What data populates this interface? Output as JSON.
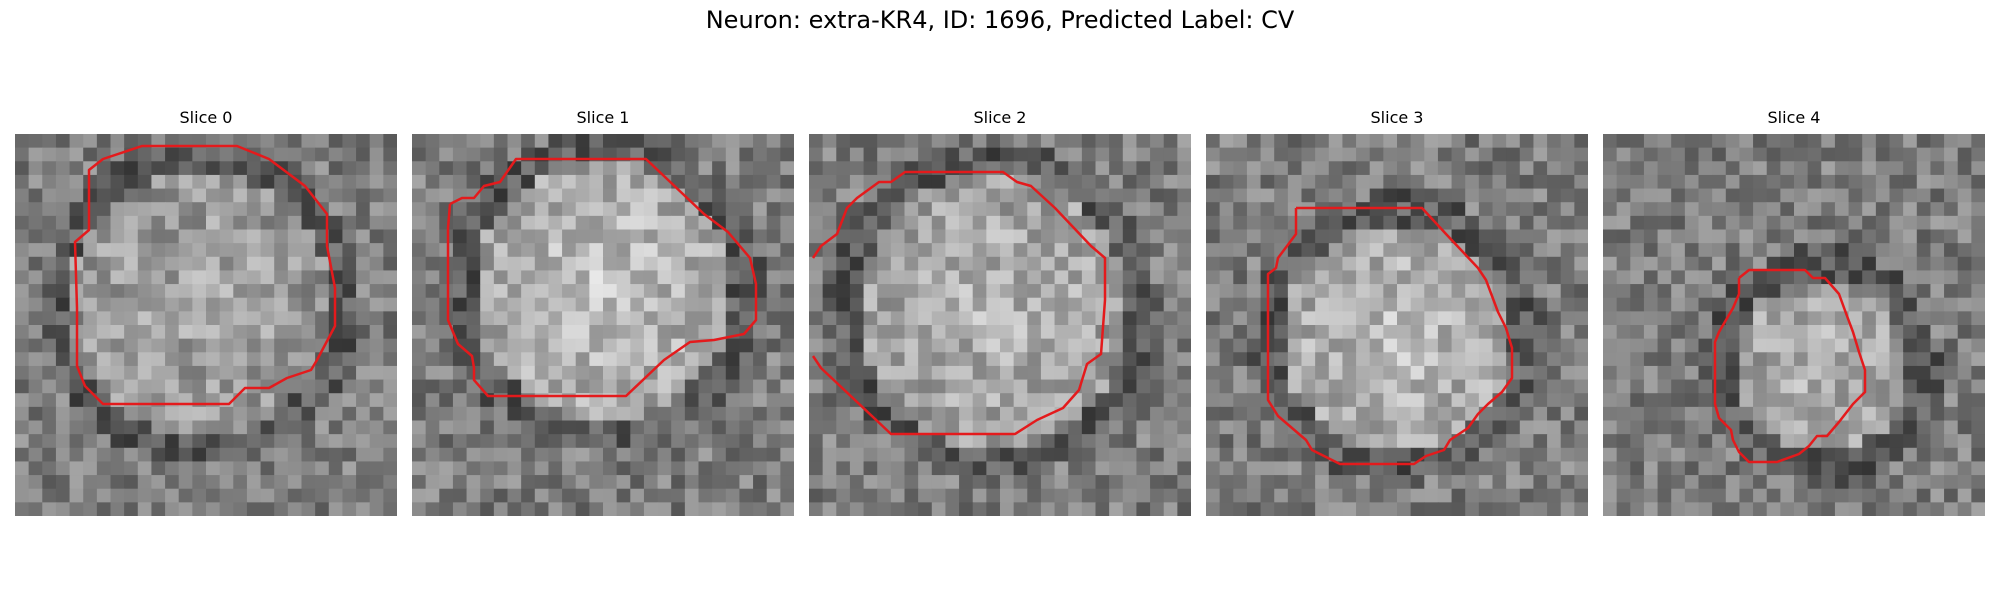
{
  "figure": {
    "title": "Neuron: extra-KR4, ID: 1696, Predicted Label: CV"
  },
  "panels": [
    {
      "label": "Slice 0"
    },
    {
      "label": "Slice 1"
    },
    {
      "label": "Slice 2"
    },
    {
      "label": "Slice 3"
    },
    {
      "label": "Slice 4"
    }
  ],
  "colors": {
    "contour": "#e41a1c"
  }
}
